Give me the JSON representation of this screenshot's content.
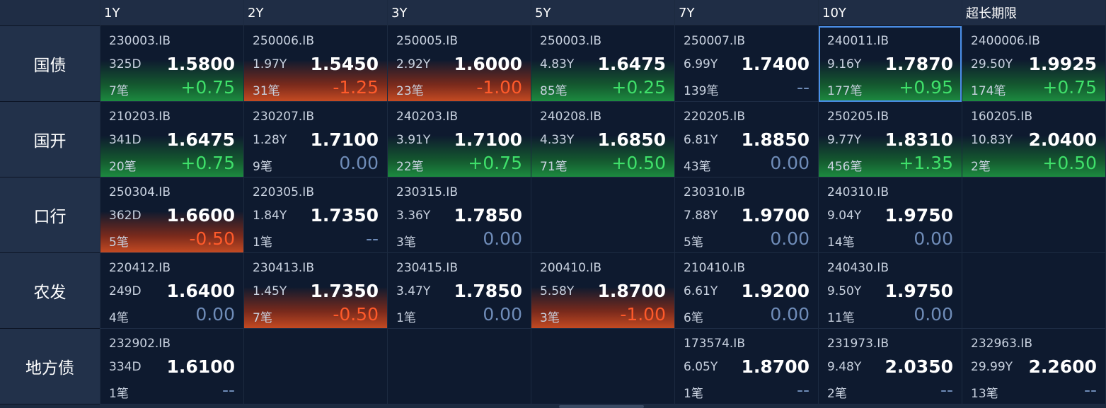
{
  "columns": [
    "1Y",
    "2Y",
    "3Y",
    "5Y",
    "7Y",
    "10Y",
    "超长期限"
  ],
  "rows": [
    {
      "label": "国债",
      "cells": [
        {
          "code": "230003.IB",
          "term": "325D",
          "yield": "1.5800",
          "count": "7笔",
          "change": "+0.75",
          "dir": "up"
        },
        {
          "code": "250006.IB",
          "term": "1.97Y",
          "yield": "1.5450",
          "count": "31笔",
          "change": "-1.25",
          "dir": "down"
        },
        {
          "code": "250005.IB",
          "term": "2.92Y",
          "yield": "1.6000",
          "count": "23笔",
          "change": "-1.00",
          "dir": "down"
        },
        {
          "code": "250003.IB",
          "term": "4.83Y",
          "yield": "1.6475",
          "count": "85笔",
          "change": "+0.25",
          "dir": "up"
        },
        {
          "code": "250007.IB",
          "term": "6.99Y",
          "yield": "1.7400",
          "count": "139笔",
          "change": "--",
          "dir": "none"
        },
        {
          "code": "240011.IB",
          "term": "9.16Y",
          "yield": "1.7870",
          "count": "177笔",
          "change": "+0.95",
          "dir": "up",
          "selected": true
        },
        {
          "code": "2400006.IB",
          "term": "29.50Y",
          "yield": "1.9925",
          "count": "174笔",
          "change": "+0.75",
          "dir": "up"
        }
      ]
    },
    {
      "label": "国开",
      "cells": [
        {
          "code": "210203.IB",
          "term": "341D",
          "yield": "1.6475",
          "count": "20笔",
          "change": "+0.75",
          "dir": "up"
        },
        {
          "code": "230207.IB",
          "term": "1.28Y",
          "yield": "1.7100",
          "count": "9笔",
          "change": "0.00",
          "dir": "flat"
        },
        {
          "code": "240203.IB",
          "term": "3.91Y",
          "yield": "1.7100",
          "count": "22笔",
          "change": "+0.75",
          "dir": "up"
        },
        {
          "code": "240208.IB",
          "term": "4.33Y",
          "yield": "1.6850",
          "count": "71笔",
          "change": "+0.50",
          "dir": "up"
        },
        {
          "code": "220205.IB",
          "term": "6.81Y",
          "yield": "1.8850",
          "count": "43笔",
          "change": "0.00",
          "dir": "flat"
        },
        {
          "code": "250205.IB",
          "term": "9.77Y",
          "yield": "1.8310",
          "count": "456笔",
          "change": "+1.35",
          "dir": "up"
        },
        {
          "code": "160205.IB",
          "term": "10.83Y",
          "yield": "2.0400",
          "count": "2笔",
          "change": "+0.50",
          "dir": "up"
        }
      ]
    },
    {
      "label": "口行",
      "cells": [
        {
          "code": "250304.IB",
          "term": "362D",
          "yield": "1.6600",
          "count": "5笔",
          "change": "-0.50",
          "dir": "down"
        },
        {
          "code": "220305.IB",
          "term": "1.84Y",
          "yield": "1.7350",
          "count": "1笔",
          "change": "--",
          "dir": "none"
        },
        {
          "code": "230315.IB",
          "term": "3.36Y",
          "yield": "1.7850",
          "count": "3笔",
          "change": "0.00",
          "dir": "flat"
        },
        null,
        {
          "code": "230310.IB",
          "term": "7.88Y",
          "yield": "1.9700",
          "count": "5笔",
          "change": "0.00",
          "dir": "flat"
        },
        {
          "code": "240310.IB",
          "term": "9.04Y",
          "yield": "1.9750",
          "count": "14笔",
          "change": "0.00",
          "dir": "flat"
        },
        null
      ]
    },
    {
      "label": "农发",
      "cells": [
        {
          "code": "220412.IB",
          "term": "249D",
          "yield": "1.6400",
          "count": "4笔",
          "change": "0.00",
          "dir": "flat"
        },
        {
          "code": "230413.IB",
          "term": "1.45Y",
          "yield": "1.7350",
          "count": "7笔",
          "change": "-0.50",
          "dir": "down"
        },
        {
          "code": "230415.IB",
          "term": "3.47Y",
          "yield": "1.7850",
          "count": "1笔",
          "change": "0.00",
          "dir": "flat"
        },
        {
          "code": "200410.IB",
          "term": "5.58Y",
          "yield": "1.8700",
          "count": "3笔",
          "change": "-1.00",
          "dir": "down"
        },
        {
          "code": "210410.IB",
          "term": "6.61Y",
          "yield": "1.9200",
          "count": "6笔",
          "change": "0.00",
          "dir": "flat"
        },
        {
          "code": "240430.IB",
          "term": "9.50Y",
          "yield": "1.9750",
          "count": "11笔",
          "change": "0.00",
          "dir": "flat"
        },
        null
      ]
    },
    {
      "label": "地方债",
      "cells": [
        {
          "code": "232902.IB",
          "term": "334D",
          "yield": "1.6100",
          "count": "1笔",
          "change": "--",
          "dir": "none"
        },
        null,
        null,
        null,
        {
          "code": "173574.IB",
          "term": "6.05Y",
          "yield": "1.8700",
          "count": "1笔",
          "change": "--",
          "dir": "none"
        },
        {
          "code": "231973.IB",
          "term": "9.48Y",
          "yield": "2.0350",
          "count": "2笔",
          "change": "--",
          "dir": "none"
        },
        {
          "code": "232963.IB",
          "term": "29.99Y",
          "yield": "2.2600",
          "count": "13笔",
          "change": "--",
          "dir": "none"
        }
      ]
    }
  ]
}
